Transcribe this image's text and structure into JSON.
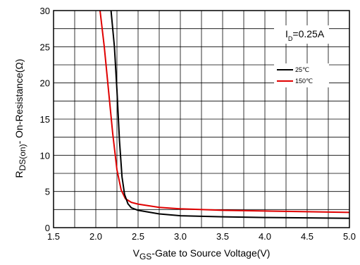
{
  "chart_data": {
    "type": "line",
    "title": "",
    "xlabel": {
      "main": "V",
      "sub": "GS",
      "rest": "-Gate to Source Voltage(V)"
    },
    "ylabel": {
      "main": "R",
      "sub": "DS(on)",
      "rest": "- On-Resistance(Ω)"
    },
    "xlim": [
      1.5,
      5.0
    ],
    "ylim": [
      0,
      30
    ],
    "x_ticks": [
      1.5,
      2.0,
      2.5,
      3.0,
      3.5,
      4.0,
      4.5,
      5.0
    ],
    "x_tick_labels": [
      "1.5",
      "2.0",
      "2.5",
      "3.0",
      "3.5",
      "4.0",
      "4.5",
      "5.0"
    ],
    "y_ticks": [
      0,
      5,
      10,
      15,
      20,
      25,
      30
    ],
    "y_tick_labels": [
      "0",
      "5",
      "10",
      "15",
      "20",
      "25",
      "30"
    ],
    "grid_x_step": 0.25,
    "grid_y_step": 2.5,
    "grid": true,
    "annotation": {
      "main": "I",
      "sub": "D",
      "rest": "=0.25A"
    },
    "legend_position": "top-right",
    "series": [
      {
        "name": "25℃",
        "color": "#000000",
        "points": [
          [
            2.18,
            30
          ],
          [
            2.22,
            25
          ],
          [
            2.25,
            19
          ],
          [
            2.28,
            12
          ],
          [
            2.31,
            7
          ],
          [
            2.34,
            4.6
          ],
          [
            2.38,
            3.3
          ],
          [
            2.42,
            2.75
          ],
          [
            2.5,
            2.4
          ],
          [
            2.75,
            1.9
          ],
          [
            3.0,
            1.65
          ],
          [
            3.5,
            1.5
          ],
          [
            4.0,
            1.4
          ],
          [
            4.5,
            1.35
          ],
          [
            5.0,
            1.3
          ]
        ]
      },
      {
        "name": "150℃",
        "color": "#e00000",
        "points": [
          [
            2.05,
            30
          ],
          [
            2.1,
            25
          ],
          [
            2.15,
            19
          ],
          [
            2.2,
            13
          ],
          [
            2.25,
            8
          ],
          [
            2.3,
            5.2
          ],
          [
            2.35,
            4.0
          ],
          [
            2.42,
            3.5
          ],
          [
            2.5,
            3.25
          ],
          [
            2.75,
            2.8
          ],
          [
            3.0,
            2.6
          ],
          [
            3.5,
            2.4
          ],
          [
            4.0,
            2.3
          ],
          [
            4.5,
            2.2
          ],
          [
            5.0,
            2.1
          ]
        ]
      }
    ]
  }
}
